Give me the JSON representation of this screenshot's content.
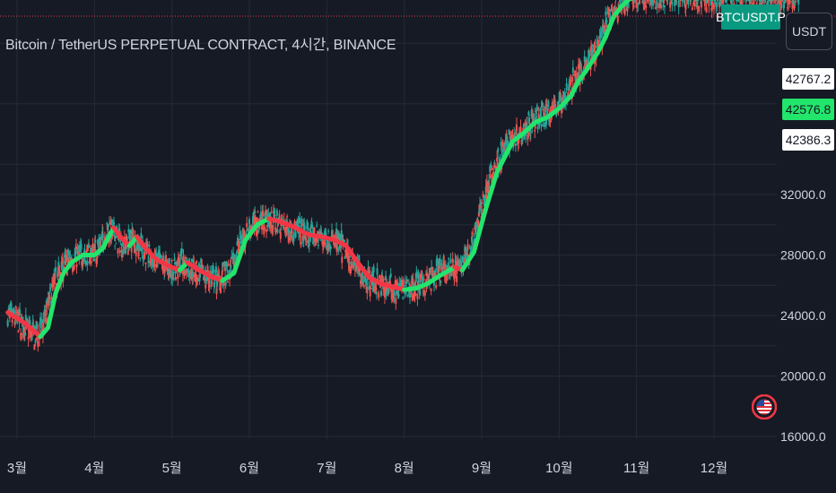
{
  "header": {
    "title": "Bitcoin / TetherUS PERPETUAL CONTRACT, 4시간, BINANCE",
    "symbol_badge": "BTCUSDT.P",
    "currency": "USDT"
  },
  "price_labels": {
    "high": "42767.2",
    "current": "42576.8",
    "low": "42386.3"
  },
  "colors": {
    "background": "#161a25",
    "grid": "#252a36",
    "badge": "#089981",
    "up_candle": "#26a69a",
    "down_candle": "#ef5350",
    "ma_up": "#22e56c",
    "ma_down": "#f23645",
    "price_line": "#f23645"
  },
  "chart_data": {
    "type": "line",
    "title": "Bitcoin / TetherUS PERPETUAL CONTRACT, 4시간, BINANCE",
    "xlabel": "",
    "ylabel": "",
    "ylim": [
      15000,
      45400
    ],
    "x_ticks": [
      "3월",
      "4월",
      "5월",
      "6월",
      "7월",
      "8월",
      "9월",
      "10월",
      "11월",
      "12월"
    ],
    "x_tick_month_index": [
      0,
      1,
      2,
      3,
      4,
      5,
      6,
      7,
      8,
      9
    ],
    "y_ticks": [
      16000,
      20000,
      24000,
      28000,
      32000
    ],
    "y_tick_labels": [
      "16000.0",
      "20000.0",
      "24000.0",
      "28000.0",
      "32000.0"
    ],
    "x_range": [
      -0.12,
      10.1
    ],
    "series": [
      {
        "kind": "moving-average",
        "x": [
          -0.12,
          0.1,
          0.3,
          0.4,
          0.5,
          0.6,
          0.7,
          0.85,
          1.0,
          1.1,
          1.25,
          1.35,
          1.45,
          1.55,
          1.65,
          1.8,
          1.95,
          2.1,
          2.2,
          2.35,
          2.5,
          2.65,
          2.8,
          2.95,
          3.1,
          3.25,
          3.4,
          3.5,
          3.6,
          3.7,
          3.8,
          3.95,
          4.1,
          4.25,
          4.4,
          4.55,
          4.7,
          4.85,
          5.0,
          5.15,
          5.3,
          5.45,
          5.55,
          5.65,
          5.75,
          5.9,
          6.05,
          6.2,
          6.4,
          6.55,
          6.7,
          6.85,
          7.0,
          7.15,
          7.25,
          7.35,
          7.45,
          7.5,
          7.6,
          7.7,
          7.8,
          7.9,
          8.0,
          8.1,
          8.25,
          8.4,
          8.55,
          8.7,
          8.85,
          9.0,
          9.15,
          9.3,
          9.4,
          9.5,
          9.6,
          9.75,
          9.9,
          10.1
        ],
        "y": [
          24200,
          23500,
          22600,
          23200,
          25500,
          26800,
          27500,
          28000,
          28000,
          28400,
          29800,
          29100,
          28600,
          29200,
          28500,
          27700,
          27300,
          27000,
          27500,
          27000,
          26600,
          26300,
          26800,
          29000,
          30000,
          30400,
          30200,
          30000,
          29800,
          29500,
          29300,
          29200,
          29000,
          28600,
          27500,
          26500,
          26100,
          25900,
          25700,
          25800,
          26100,
          26600,
          26900,
          27200,
          27000,
          28200,
          31000,
          33500,
          35500,
          36100,
          36800,
          37100,
          37700,
          38500,
          39500,
          40200,
          41000,
          41400,
          42400,
          43700,
          44400,
          44900,
          45100,
          45200,
          45000,
          45000,
          45000,
          45000,
          45000,
          45000,
          45000,
          45000,
          45000,
          45000,
          45000,
          45000,
          45000,
          45000
        ]
      }
    ]
  }
}
